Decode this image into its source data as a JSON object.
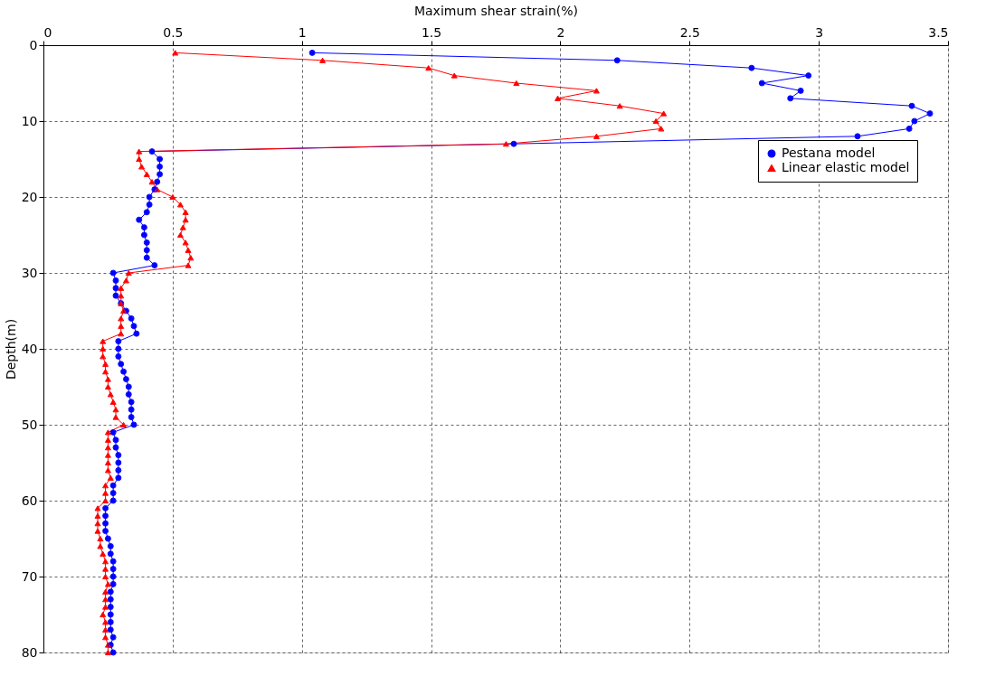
{
  "chart_data": {
    "type": "line",
    "xlabel": "Maximum shear strain(%)",
    "ylabel": "Depth(m)",
    "xlim": [
      0,
      3.5
    ],
    "xticks": [
      0,
      0.5,
      1,
      1.5,
      2,
      2.5,
      3,
      3.5
    ],
    "ylim": [
      80,
      0
    ],
    "yticks": [
      0,
      10,
      20,
      30,
      40,
      50,
      60,
      70,
      80
    ],
    "grid": true,
    "legend": "top right",
    "line_style": "solid",
    "series": [
      {
        "name": "Pestana model",
        "color": "#0000ff",
        "marker": "circle",
        "x": [
          1.04,
          2.22,
          2.74,
          2.96,
          2.78,
          2.93,
          2.89,
          3.36,
          3.43,
          3.37,
          3.35,
          3.15,
          1.82,
          0.42,
          0.45,
          0.45,
          0.45,
          0.44,
          0.43,
          0.41,
          0.41,
          0.4,
          0.37,
          0.39,
          0.39,
          0.4,
          0.4,
          0.4,
          0.43,
          0.27,
          0.28,
          0.28,
          0.28,
          0.3,
          0.32,
          0.34,
          0.35,
          0.36,
          0.29,
          0.29,
          0.29,
          0.3,
          0.31,
          0.32,
          0.33,
          0.33,
          0.34,
          0.34,
          0.34,
          0.35,
          0.27,
          0.28,
          0.28,
          0.29,
          0.29,
          0.29,
          0.29,
          0.27,
          0.27,
          0.27,
          0.24,
          0.24,
          0.24,
          0.24,
          0.25,
          0.26,
          0.26,
          0.27,
          0.27,
          0.27,
          0.27,
          0.26,
          0.26,
          0.26,
          0.26,
          0.26,
          0.26,
          0.27,
          0.26,
          0.27
        ],
        "values": [
          1,
          2,
          3,
          4,
          5,
          6,
          7,
          8,
          9,
          10,
          11,
          12,
          13,
          14,
          15,
          16,
          17,
          18,
          19,
          20,
          21,
          22,
          23,
          24,
          25,
          26,
          27,
          28,
          29,
          30,
          31,
          32,
          33,
          34,
          35,
          36,
          37,
          38,
          39,
          40,
          41,
          42,
          43,
          44,
          45,
          46,
          47,
          48,
          49,
          50,
          51,
          52,
          53,
          54,
          55,
          56,
          57,
          58,
          59,
          60,
          61,
          62,
          63,
          64,
          65,
          66,
          67,
          68,
          69,
          70,
          71,
          72,
          73,
          74,
          75,
          76,
          77,
          78,
          79,
          80
        ]
      },
      {
        "name": "Linear elastic model",
        "color": "#ff0000",
        "marker": "triangle",
        "x": [
          0.51,
          1.08,
          1.49,
          1.59,
          1.83,
          2.14,
          1.99,
          2.23,
          2.4,
          2.37,
          2.39,
          2.14,
          1.79,
          0.37,
          0.37,
          0.38,
          0.4,
          0.42,
          0.44,
          0.5,
          0.53,
          0.55,
          0.55,
          0.54,
          0.53,
          0.55,
          0.56,
          0.57,
          0.56,
          0.33,
          0.32,
          0.3,
          0.3,
          0.3,
          0.31,
          0.3,
          0.3,
          0.3,
          0.23,
          0.23,
          0.23,
          0.24,
          0.24,
          0.25,
          0.25,
          0.26,
          0.27,
          0.28,
          0.28,
          0.31,
          0.25,
          0.25,
          0.25,
          0.25,
          0.25,
          0.25,
          0.26,
          0.24,
          0.24,
          0.24,
          0.21,
          0.21,
          0.21,
          0.21,
          0.22,
          0.22,
          0.23,
          0.24,
          0.24,
          0.24,
          0.25,
          0.24,
          0.24,
          0.24,
          0.23,
          0.24,
          0.24,
          0.24,
          0.25,
          0.25
        ],
        "values": [
          1,
          2,
          3,
          4,
          5,
          6,
          7,
          8,
          9,
          10,
          11,
          12,
          13,
          14,
          15,
          16,
          17,
          18,
          19,
          20,
          21,
          22,
          23,
          24,
          25,
          26,
          27,
          28,
          29,
          30,
          31,
          32,
          33,
          34,
          35,
          36,
          37,
          38,
          39,
          40,
          41,
          42,
          43,
          44,
          45,
          46,
          47,
          48,
          49,
          50,
          51,
          52,
          53,
          54,
          55,
          56,
          57,
          58,
          59,
          60,
          61,
          62,
          63,
          64,
          65,
          66,
          67,
          68,
          69,
          70,
          71,
          72,
          73,
          74,
          75,
          76,
          77,
          78,
          79,
          80
        ]
      }
    ]
  }
}
